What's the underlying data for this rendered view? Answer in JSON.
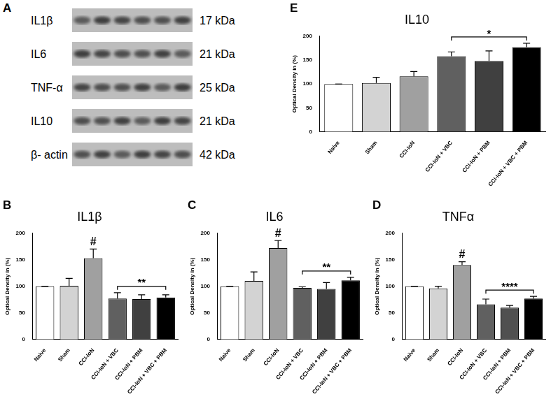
{
  "blot": {
    "panel": "A",
    "rows": [
      {
        "label": "IL1β",
        "size": "17 kDa"
      },
      {
        "label": "IL6",
        "size": "21 kDa"
      },
      {
        "label": "TNF-α",
        "size": "25 kDa"
      },
      {
        "label": "IL10",
        "size": "21 kDa"
      },
      {
        "label": "β- actin",
        "size": "42 kDa"
      }
    ]
  },
  "chart_data": [
    {
      "panel": "B",
      "type": "bar",
      "title": "IL1β",
      "y_label": "Optical Density in (%)",
      "categories": [
        "Naive",
        "Sham",
        "CCI-IoN",
        "CCI-IoN + VBC",
        "CCI-IoN + PBM",
        "CCI-IoN + VBC + PBM"
      ],
      "values": [
        100,
        101,
        153,
        77,
        76,
        79
      ],
      "errors": [
        0,
        14,
        17,
        11,
        8,
        5
      ],
      "colors": [
        "#ffffff",
        "#d3d3d3",
        "#a0a0a0",
        "#606060",
        "#404040",
        "#000000"
      ],
      "ylim": [
        0,
        200
      ],
      "yticks": [
        0,
        50,
        100,
        150,
        200
      ],
      "grid": false,
      "annotations": [
        {
          "text": "#",
          "category": "CCI-IoN"
        },
        {
          "text": "**",
          "from": "CCI-IoN + VBC",
          "to": "CCI-IoN + VBC + PBM"
        }
      ]
    },
    {
      "panel": "C",
      "type": "bar",
      "title": "IL6",
      "y_label": "Optical Density in (%)",
      "categories": [
        "Naive",
        "Sham",
        "CCI-IoN",
        "CCI-IoN + VBC",
        "CCI-IoN + PBM",
        "CCI-IoN + VBC + PBM"
      ],
      "values": [
        100,
        110,
        172,
        97,
        95,
        111
      ],
      "errors": [
        0,
        17,
        14,
        2,
        12,
        6
      ],
      "colors": [
        "#ffffff",
        "#d3d3d3",
        "#a0a0a0",
        "#606060",
        "#404040",
        "#000000"
      ],
      "ylim": [
        0,
        200
      ],
      "yticks": [
        0,
        50,
        100,
        150,
        200
      ],
      "grid": false,
      "annotations": [
        {
          "text": "#",
          "category": "CCI-IoN"
        },
        {
          "text": "**",
          "from": "CCI-IoN + VBC",
          "to": "CCI-IoN + VBC + PBM"
        }
      ]
    },
    {
      "panel": "D",
      "type": "bar",
      "title": "TNFα",
      "y_label": "Optical Density in (%)",
      "categories": [
        "Naive",
        "Sham",
        "CCI-IoN",
        "CCI-IoN + VBC",
        "CCI-IoN + PBM",
        "CCI-IoN + VBC + PBM"
      ],
      "values": [
        100,
        96,
        140,
        66,
        60,
        77
      ],
      "errors": [
        0,
        4,
        6,
        10,
        4,
        4
      ],
      "colors": [
        "#ffffff",
        "#d3d3d3",
        "#a0a0a0",
        "#606060",
        "#505050",
        "#000000"
      ],
      "ylim": [
        0,
        200
      ],
      "yticks": [
        0,
        50,
        100,
        150,
        200
      ],
      "grid": false,
      "annotations": [
        {
          "text": "#",
          "category": "CCI-IoN"
        },
        {
          "text": "****",
          "from": "CCI-IoN + VBC",
          "to": "CCI-IoN + VBC + PBM"
        }
      ]
    },
    {
      "panel": "E",
      "type": "bar",
      "title": "IL10",
      "y_label": "Optical Density in (%)",
      "categories": [
        "Naive",
        "Sham",
        "CCI-IoN",
        "CCI-IoN + VBC",
        "CCI-IoN + PBM",
        "CCI-IoN + VBC + PBM"
      ],
      "values": [
        100,
        102,
        116,
        158,
        148,
        177
      ],
      "errors": [
        0,
        12,
        10,
        9,
        21,
        8
      ],
      "colors": [
        "#ffffff",
        "#d3d3d3",
        "#a0a0a0",
        "#606060",
        "#404040",
        "#000000"
      ],
      "ylim": [
        0,
        200
      ],
      "yticks": [
        0,
        50,
        100,
        150,
        200
      ],
      "grid": false,
      "annotations": [
        {
          "text": "*",
          "from": "CCI-IoN + VBC",
          "to": "CCI-IoN + VBC + PBM"
        }
      ]
    }
  ]
}
